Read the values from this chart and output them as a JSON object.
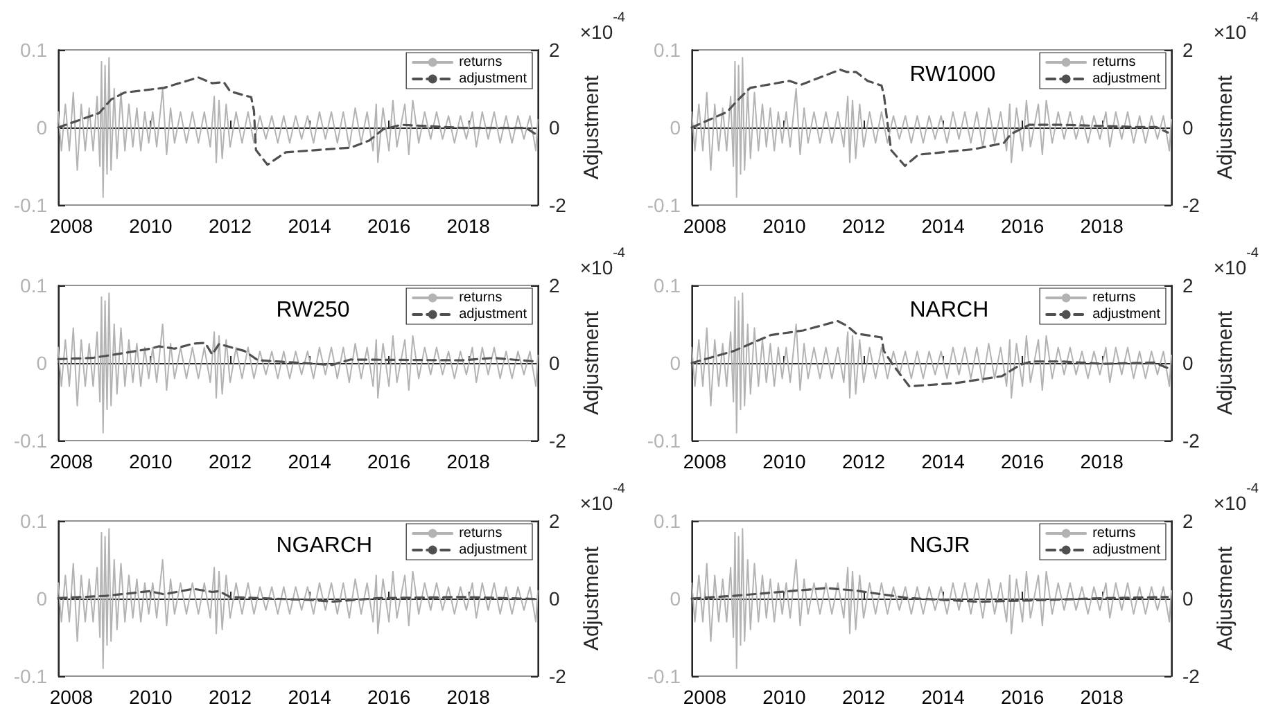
{
  "chart_data": [
    {
      "type": "line",
      "legend": "top right",
      "xlim": [
        2007.67,
        2019.75
      ],
      "xticks": [
        2008,
        2010,
        2012,
        2014,
        2016,
        2018
      ],
      "ylim": [
        -0.1,
        0.1
      ],
      "yticks": [
        -0.1,
        0,
        0.1
      ],
      "y2lim": [
        -2,
        2
      ],
      "y2ticks": [
        -2,
        0,
        2
      ],
      "y2label": "Adjustment",
      "annotations": [
        "×10$^{-4}$"
      ],
      "series": [
        {
          "name": "returns",
          "color": "#b3b3b3",
          "line_style": "solid",
          "x": [
            2007.67,
            2007.75,
            2007.85,
            2007.95,
            2008.05,
            2008.15,
            2008.25,
            2008.35,
            2008.45,
            2008.55,
            2008.65,
            2008.72,
            2008.76,
            2008.8,
            2008.85,
            2008.9,
            2008.95,
            2009.0,
            2009.08,
            2009.15,
            2009.25,
            2009.35,
            2009.45,
            2009.55,
            2009.65,
            2009.75,
            2009.85,
            2009.95,
            2010.05,
            2010.15,
            2010.3,
            2010.4,
            2010.5,
            2010.6,
            2010.75,
            2010.9,
            2011.05,
            2011.2,
            2011.35,
            2011.5,
            2011.6,
            2011.65,
            2011.72,
            2011.8,
            2011.9,
            2012.0,
            2012.15,
            2012.3,
            2012.45,
            2012.6,
            2012.75,
            2012.9,
            2013.05,
            2013.2,
            2013.35,
            2013.5,
            2013.65,
            2013.8,
            2013.95,
            2014.1,
            2014.25,
            2014.4,
            2014.55,
            2014.7,
            2014.85,
            2015.0,
            2015.15,
            2015.3,
            2015.45,
            2015.6,
            2015.68,
            2015.72,
            2015.85,
            2016.0,
            2016.1,
            2016.2,
            2016.4,
            2016.5,
            2016.6,
            2016.75,
            2016.9,
            2017.05,
            2017.2,
            2017.35,
            2017.5,
            2017.65,
            2017.8,
            2017.95,
            2018.1,
            2018.2,
            2018.35,
            2018.5,
            2018.65,
            2018.8,
            2018.95,
            2019.1,
            2019.25,
            2019.4,
            2019.55,
            2019.7,
            2019.75
          ],
          "values": [
            0.02,
            -0.03,
            0.03,
            -0.03,
            0.045,
            -0.055,
            0.03,
            -0.03,
            0.025,
            -0.03,
            0.04,
            -0.05,
            0.085,
            -0.09,
            0.08,
            -0.06,
            0.09,
            -0.055,
            0.05,
            -0.04,
            0.045,
            -0.03,
            0.03,
            -0.025,
            0.025,
            -0.03,
            0.02,
            -0.02,
            0.02,
            -0.025,
            0.05,
            -0.035,
            0.025,
            -0.02,
            0.02,
            -0.02,
            0.02,
            -0.02,
            0.02,
            -0.025,
            0.04,
            -0.045,
            0.035,
            -0.04,
            0.03,
            -0.025,
            0.02,
            -0.02,
            0.02,
            -0.02,
            0.015,
            -0.015,
            0.015,
            -0.02,
            0.015,
            -0.02,
            0.015,
            -0.015,
            0.015,
            -0.02,
            0.02,
            -0.015,
            0.02,
            -0.02,
            0.02,
            -0.025,
            0.025,
            -0.02,
            0.02,
            -0.03,
            0.03,
            -0.045,
            0.025,
            -0.03,
            0.035,
            -0.025,
            0.03,
            -0.035,
            0.035,
            -0.02,
            0.02,
            -0.015,
            0.02,
            -0.015,
            0.015,
            -0.02,
            0.015,
            -0.015,
            0.02,
            -0.025,
            0.02,
            -0.015,
            0.02,
            -0.02,
            0.015,
            -0.02,
            0.015,
            -0.015,
            0.015,
            -0.03,
            0.01
          ]
        },
        {
          "name": "adjustment",
          "color": "#505050",
          "line_style": "dashed",
          "axis": "y2",
          "x": [
            2007.67,
            2008.7,
            2009.0,
            2009.34,
            2010.33,
            2011.2,
            2011.55,
            2011.84,
            2012.0,
            2012.53,
            2012.6,
            2012.65,
            2012.94,
            2013.4,
            2015.03,
            2015.5,
            2015.85,
            2016.31,
            2017.83,
            2019.45,
            2019.69
          ],
          "values": [
            0,
            0.37,
            0.72,
            0.9,
            1.02,
            1.29,
            1.14,
            1.17,
            0.93,
            0.78,
            0.43,
            -0.58,
            -0.96,
            -0.64,
            -0.52,
            -0.34,
            -0.05,
            0.07,
            -0.01,
            -0.01,
            -0.17
          ]
        }
      ]
    },
    {
      "type": "line",
      "title": "RW1000",
      "legend": "top right",
      "xlim": [
        2007.67,
        2019.75
      ],
      "xticks": [
        2008,
        2010,
        2012,
        2014,
        2016,
        2018
      ],
      "ylim": [
        -0.1,
        0.1
      ],
      "yticks": [
        -0.1,
        0,
        0.1
      ],
      "y2lim": [
        -2,
        2
      ],
      "y2ticks": [
        -2,
        0,
        2
      ],
      "y2label": "Adjustment",
      "annotations": [
        "×10$^{-4}$"
      ],
      "series": [
        {
          "name": "returns",
          "color": "#b3b3b3",
          "line_style": "solid",
          "x": [
            2007.67,
            2007.75,
            2007.85,
            2007.95,
            2008.05,
            2008.15,
            2008.25,
            2008.35,
            2008.45,
            2008.55,
            2008.65,
            2008.72,
            2008.76,
            2008.8,
            2008.85,
            2008.9,
            2008.95,
            2009.0,
            2009.08,
            2009.15,
            2009.25,
            2009.35,
            2009.45,
            2009.55,
            2009.65,
            2009.75,
            2009.85,
            2009.95,
            2010.05,
            2010.15,
            2010.3,
            2010.4,
            2010.5,
            2010.6,
            2010.75,
            2010.9,
            2011.05,
            2011.2,
            2011.35,
            2011.5,
            2011.6,
            2011.65,
            2011.72,
            2011.8,
            2011.9,
            2012.0,
            2012.15,
            2012.3,
            2012.45,
            2012.6,
            2012.75,
            2012.9,
            2013.05,
            2013.2,
            2013.35,
            2013.5,
            2013.65,
            2013.8,
            2013.95,
            2014.1,
            2014.25,
            2014.4,
            2014.55,
            2014.7,
            2014.85,
            2015.0,
            2015.15,
            2015.3,
            2015.45,
            2015.6,
            2015.68,
            2015.72,
            2015.85,
            2016.0,
            2016.1,
            2016.2,
            2016.4,
            2016.5,
            2016.6,
            2016.75,
            2016.9,
            2017.05,
            2017.2,
            2017.35,
            2017.5,
            2017.65,
            2017.8,
            2017.95,
            2018.1,
            2018.2,
            2018.35,
            2018.5,
            2018.65,
            2018.8,
            2018.95,
            2019.1,
            2019.25,
            2019.4,
            2019.55,
            2019.7,
            2019.75
          ],
          "values": [
            0.02,
            -0.03,
            0.03,
            -0.03,
            0.045,
            -0.055,
            0.03,
            -0.03,
            0.025,
            -0.03,
            0.04,
            -0.05,
            0.085,
            -0.09,
            0.08,
            -0.06,
            0.09,
            -0.055,
            0.05,
            -0.04,
            0.045,
            -0.03,
            0.03,
            -0.025,
            0.025,
            -0.03,
            0.02,
            -0.02,
            0.02,
            -0.025,
            0.05,
            -0.035,
            0.025,
            -0.02,
            0.02,
            -0.02,
            0.02,
            -0.02,
            0.02,
            -0.025,
            0.04,
            -0.045,
            0.035,
            -0.04,
            0.03,
            -0.025,
            0.02,
            -0.02,
            0.02,
            -0.02,
            0.015,
            -0.015,
            0.015,
            -0.02,
            0.015,
            -0.02,
            0.015,
            -0.015,
            0.015,
            -0.02,
            0.02,
            -0.015,
            0.02,
            -0.02,
            0.02,
            -0.025,
            0.025,
            -0.02,
            0.02,
            -0.03,
            0.03,
            -0.045,
            0.025,
            -0.03,
            0.035,
            -0.025,
            0.03,
            -0.035,
            0.035,
            -0.02,
            0.02,
            -0.015,
            0.02,
            -0.015,
            0.015,
            -0.02,
            0.015,
            -0.015,
            0.02,
            -0.025,
            0.02,
            -0.015,
            0.02,
            -0.02,
            0.015,
            -0.02,
            0.015,
            -0.015,
            0.015,
            -0.03,
            0.01
          ]
        },
        {
          "name": "adjustment",
          "color": "#505050",
          "line_style": "dashed",
          "axis": "y2",
          "x": [
            2007.67,
            2008.56,
            2008.79,
            2009.14,
            2010.13,
            2010.42,
            2011.41,
            2011.58,
            2011.81,
            2012.1,
            2012.45,
            2012.51,
            2012.69,
            2013.04,
            2013.38,
            2014.78,
            2015.53,
            2015.71,
            2016.17,
            2016.99,
            2018.97,
            2019.37,
            2019.66
          ],
          "values": [
            0,
            0.4,
            0.66,
            1.02,
            1.2,
            1.1,
            1.49,
            1.43,
            1.43,
            1.2,
            1.08,
            0.84,
            -0.58,
            -0.99,
            -0.7,
            -0.56,
            -0.4,
            -0.17,
            0.07,
            0.07,
            0.01,
            0.01,
            -0.13
          ]
        }
      ]
    },
    {
      "type": "line",
      "title": "RW250",
      "legend": "top right",
      "xlim": [
        2007.67,
        2019.75
      ],
      "xticks": [
        2008,
        2010,
        2012,
        2014,
        2016,
        2018
      ],
      "ylim": [
        -0.1,
        0.1
      ],
      "yticks": [
        -0.1,
        0,
        0.1
      ],
      "y2lim": [
        -2,
        2
      ],
      "y2ticks": [
        -2,
        0,
        2
      ],
      "y2label": "Adjustment",
      "annotations": [
        "×10$^{-4}$"
      ],
      "series": [
        {
          "name": "returns",
          "color": "#b3b3b3",
          "line_style": "solid",
          "x": [
            2007.67,
            2007.75,
            2007.85,
            2007.95,
            2008.05,
            2008.15,
            2008.25,
            2008.35,
            2008.45,
            2008.55,
            2008.65,
            2008.72,
            2008.76,
            2008.8,
            2008.85,
            2008.9,
            2008.95,
            2009.0,
            2009.08,
            2009.15,
            2009.25,
            2009.35,
            2009.45,
            2009.55,
            2009.65,
            2009.75,
            2009.85,
            2009.95,
            2010.05,
            2010.15,
            2010.3,
            2010.4,
            2010.5,
            2010.6,
            2010.75,
            2010.9,
            2011.05,
            2011.2,
            2011.35,
            2011.5,
            2011.6,
            2011.65,
            2011.72,
            2011.8,
            2011.9,
            2012.0,
            2012.15,
            2012.3,
            2012.45,
            2012.6,
            2012.75,
            2012.9,
            2013.05,
            2013.2,
            2013.35,
            2013.5,
            2013.65,
            2013.8,
            2013.95,
            2014.1,
            2014.25,
            2014.4,
            2014.55,
            2014.7,
            2014.85,
            2015.0,
            2015.15,
            2015.3,
            2015.45,
            2015.6,
            2015.68,
            2015.72,
            2015.85,
            2016.0,
            2016.1,
            2016.2,
            2016.4,
            2016.5,
            2016.6,
            2016.75,
            2016.9,
            2017.05,
            2017.2,
            2017.35,
            2017.5,
            2017.65,
            2017.8,
            2017.95,
            2018.1,
            2018.2,
            2018.35,
            2018.5,
            2018.65,
            2018.8,
            2018.95,
            2019.1,
            2019.25,
            2019.4,
            2019.55,
            2019.7,
            2019.75
          ],
          "values": [
            0.02,
            -0.03,
            0.03,
            -0.03,
            0.045,
            -0.055,
            0.03,
            -0.03,
            0.025,
            -0.03,
            0.04,
            -0.05,
            0.085,
            -0.09,
            0.08,
            -0.06,
            0.09,
            -0.055,
            0.05,
            -0.04,
            0.045,
            -0.03,
            0.03,
            -0.025,
            0.025,
            -0.03,
            0.02,
            -0.02,
            0.02,
            -0.025,
            0.05,
            -0.035,
            0.025,
            -0.02,
            0.02,
            -0.02,
            0.02,
            -0.02,
            0.02,
            -0.025,
            0.04,
            -0.045,
            0.035,
            -0.04,
            0.03,
            -0.025,
            0.02,
            -0.02,
            0.02,
            -0.02,
            0.015,
            -0.015,
            0.015,
            -0.02,
            0.015,
            -0.02,
            0.015,
            -0.015,
            0.015,
            -0.02,
            0.02,
            -0.015,
            0.02,
            -0.02,
            0.02,
            -0.025,
            0.025,
            -0.02,
            0.02,
            -0.03,
            0.03,
            -0.045,
            0.025,
            -0.03,
            0.035,
            -0.025,
            0.03,
            -0.035,
            0.035,
            -0.02,
            0.02,
            -0.015,
            0.02,
            -0.015,
            0.015,
            -0.02,
            0.015,
            -0.015,
            0.02,
            -0.025,
            0.02,
            -0.015,
            0.02,
            -0.02,
            0.015,
            -0.02,
            0.015,
            -0.015,
            0.015,
            -0.03,
            0.01
          ]
        },
        {
          "name": "adjustment",
          "color": "#505050",
          "line_style": "dashed",
          "axis": "y2",
          "x": [
            2007.67,
            2008.52,
            2009.1,
            2010.0,
            2010.2,
            2010.6,
            2011.08,
            2011.37,
            2011.55,
            2011.72,
            2012.36,
            2012.7,
            2013.64,
            2014.57,
            2015.03,
            2017.83,
            2018.64,
            2019.69
          ],
          "values": [
            0.1,
            0.13,
            0.22,
            0.37,
            0.43,
            0.37,
            0.5,
            0.52,
            0.22,
            0.49,
            0.31,
            0.07,
            0.01,
            -0.05,
            0.09,
            0.07,
            0.13,
            0.04
          ]
        }
      ]
    },
    {
      "type": "line",
      "title": "NARCH",
      "legend": "top right",
      "xlim": [
        2007.67,
        2019.75
      ],
      "xticks": [
        2008,
        2010,
        2012,
        2014,
        2016,
        2018
      ],
      "ylim": [
        -0.1,
        0.1
      ],
      "yticks": [
        -0.1,
        0,
        0.1
      ],
      "y2lim": [
        -2,
        2
      ],
      "y2ticks": [
        -2,
        0,
        2
      ],
      "y2label": "Adjustment",
      "annotations": [
        "×10$^{-4}$"
      ],
      "series": [
        {
          "name": "returns",
          "color": "#b3b3b3",
          "line_style": "solid",
          "x": [
            2007.67,
            2007.75,
            2007.85,
            2007.95,
            2008.05,
            2008.15,
            2008.25,
            2008.35,
            2008.45,
            2008.55,
            2008.65,
            2008.72,
            2008.76,
            2008.8,
            2008.85,
            2008.9,
            2008.95,
            2009.0,
            2009.08,
            2009.15,
            2009.25,
            2009.35,
            2009.45,
            2009.55,
            2009.65,
            2009.75,
            2009.85,
            2009.95,
            2010.05,
            2010.15,
            2010.3,
            2010.4,
            2010.5,
            2010.6,
            2010.75,
            2010.9,
            2011.05,
            2011.2,
            2011.35,
            2011.5,
            2011.6,
            2011.65,
            2011.72,
            2011.8,
            2011.9,
            2012.0,
            2012.15,
            2012.3,
            2012.45,
            2012.6,
            2012.75,
            2012.9,
            2013.05,
            2013.2,
            2013.35,
            2013.5,
            2013.65,
            2013.8,
            2013.95,
            2014.1,
            2014.25,
            2014.4,
            2014.55,
            2014.7,
            2014.85,
            2015.0,
            2015.15,
            2015.3,
            2015.45,
            2015.6,
            2015.68,
            2015.72,
            2015.85,
            2016.0,
            2016.1,
            2016.2,
            2016.4,
            2016.5,
            2016.6,
            2016.75,
            2016.9,
            2017.05,
            2017.2,
            2017.35,
            2017.5,
            2017.65,
            2017.8,
            2017.95,
            2018.1,
            2018.2,
            2018.35,
            2018.5,
            2018.65,
            2018.8,
            2018.95,
            2019.1,
            2019.25,
            2019.4,
            2019.55,
            2019.7,
            2019.75
          ],
          "values": [
            0.02,
            -0.03,
            0.03,
            -0.03,
            0.045,
            -0.055,
            0.03,
            -0.03,
            0.025,
            -0.03,
            0.04,
            -0.05,
            0.085,
            -0.09,
            0.08,
            -0.06,
            0.09,
            -0.055,
            0.05,
            -0.04,
            0.045,
            -0.03,
            0.03,
            -0.025,
            0.025,
            -0.03,
            0.02,
            -0.02,
            0.02,
            -0.025,
            0.05,
            -0.035,
            0.025,
            -0.02,
            0.02,
            -0.02,
            0.02,
            -0.02,
            0.02,
            -0.025,
            0.04,
            -0.045,
            0.035,
            -0.04,
            0.03,
            -0.025,
            0.02,
            -0.02,
            0.02,
            -0.02,
            0.015,
            -0.015,
            0.015,
            -0.02,
            0.015,
            -0.02,
            0.015,
            -0.015,
            0.015,
            -0.02,
            0.02,
            -0.015,
            0.02,
            -0.02,
            0.02,
            -0.025,
            0.025,
            -0.02,
            0.02,
            -0.03,
            0.03,
            -0.045,
            0.025,
            -0.03,
            0.035,
            -0.025,
            0.03,
            -0.035,
            0.035,
            -0.02,
            0.02,
            -0.015,
            0.02,
            -0.015,
            0.015,
            -0.02,
            0.015,
            -0.015,
            0.02,
            -0.025,
            0.02,
            -0.015,
            0.02,
            -0.02,
            0.015,
            -0.02,
            0.015,
            -0.015,
            0.015,
            -0.03,
            0.01
          ]
        },
        {
          "name": "adjustment",
          "color": "#505050",
          "line_style": "dashed",
          "axis": "y2",
          "x": [
            2007.67,
            2008.73,
            2009.66,
            2010.48,
            2011.35,
            2011.58,
            2011.81,
            2012.45,
            2012.51,
            2012.74,
            2013.15,
            2014.31,
            2015.48,
            2015.94,
            2016.23,
            2016.99,
            2018.03,
            2019.31,
            2019.66
          ],
          "values": [
            0,
            0.31,
            0.72,
            0.84,
            1.08,
            0.96,
            0.76,
            0.66,
            0.31,
            -0.05,
            -0.6,
            -0.52,
            -0.34,
            -0.05,
            0.04,
            0.04,
            -0.02,
            0.01,
            -0.13
          ]
        }
      ]
    },
    {
      "type": "line",
      "title": "NGARCH",
      "legend": "top right",
      "xlim": [
        2007.67,
        2019.75
      ],
      "xticks": [
        2008,
        2010,
        2012,
        2014,
        2016,
        2018
      ],
      "ylim": [
        -0.1,
        0.1
      ],
      "yticks": [
        -0.1,
        0,
        0.1
      ],
      "y2lim": [
        -2,
        2
      ],
      "y2ticks": [
        -2,
        0,
        2
      ],
      "y2label": "Adjustment",
      "annotations": [
        "×10$^{-4}$"
      ],
      "series": [
        {
          "name": "returns",
          "color": "#b3b3b3",
          "line_style": "solid",
          "x": [
            2007.67,
            2007.75,
            2007.85,
            2007.95,
            2008.05,
            2008.15,
            2008.25,
            2008.35,
            2008.45,
            2008.55,
            2008.65,
            2008.72,
            2008.76,
            2008.8,
            2008.85,
            2008.9,
            2008.95,
            2009.0,
            2009.08,
            2009.15,
            2009.25,
            2009.35,
            2009.45,
            2009.55,
            2009.65,
            2009.75,
            2009.85,
            2009.95,
            2010.05,
            2010.15,
            2010.3,
            2010.4,
            2010.5,
            2010.6,
            2010.75,
            2010.9,
            2011.05,
            2011.2,
            2011.35,
            2011.5,
            2011.6,
            2011.65,
            2011.72,
            2011.8,
            2011.9,
            2012.0,
            2012.15,
            2012.3,
            2012.45,
            2012.6,
            2012.75,
            2012.9,
            2013.05,
            2013.2,
            2013.35,
            2013.5,
            2013.65,
            2013.8,
            2013.95,
            2014.1,
            2014.25,
            2014.4,
            2014.55,
            2014.7,
            2014.85,
            2015.0,
            2015.15,
            2015.3,
            2015.45,
            2015.6,
            2015.68,
            2015.72,
            2015.85,
            2016.0,
            2016.1,
            2016.2,
            2016.4,
            2016.5,
            2016.6,
            2016.75,
            2016.9,
            2017.05,
            2017.2,
            2017.35,
            2017.5,
            2017.65,
            2017.8,
            2017.95,
            2018.1,
            2018.2,
            2018.35,
            2018.5,
            2018.65,
            2018.8,
            2018.95,
            2019.1,
            2019.25,
            2019.4,
            2019.55,
            2019.7,
            2019.75
          ],
          "values": [
            0.02,
            -0.03,
            0.03,
            -0.03,
            0.045,
            -0.055,
            0.03,
            -0.03,
            0.025,
            -0.03,
            0.04,
            -0.05,
            0.085,
            -0.09,
            0.08,
            -0.06,
            0.09,
            -0.055,
            0.05,
            -0.04,
            0.045,
            -0.03,
            0.03,
            -0.025,
            0.025,
            -0.03,
            0.02,
            -0.02,
            0.02,
            -0.025,
            0.05,
            -0.035,
            0.025,
            -0.02,
            0.02,
            -0.02,
            0.02,
            -0.02,
            0.02,
            -0.025,
            0.04,
            -0.045,
            0.035,
            -0.04,
            0.03,
            -0.025,
            0.02,
            -0.02,
            0.02,
            -0.02,
            0.015,
            -0.015,
            0.015,
            -0.02,
            0.015,
            -0.02,
            0.015,
            -0.015,
            0.015,
            -0.02,
            0.02,
            -0.015,
            0.02,
            -0.02,
            0.02,
            -0.025,
            0.025,
            -0.02,
            0.02,
            -0.03,
            0.03,
            -0.045,
            0.025,
            -0.03,
            0.035,
            -0.025,
            0.03,
            -0.035,
            0.035,
            -0.02,
            0.02,
            -0.015,
            0.02,
            -0.015,
            0.015,
            -0.02,
            0.015,
            -0.015,
            0.02,
            -0.025,
            0.02,
            -0.015,
            0.02,
            -0.02,
            0.015,
            -0.02,
            0.015,
            -0.015,
            0.015,
            -0.03,
            0.01
          ]
        },
        {
          "name": "adjustment",
          "color": "#505050",
          "line_style": "dashed",
          "axis": "y2",
          "x": [
            2007.67,
            2008.87,
            2009.98,
            2010.33,
            2011.08,
            2011.55,
            2011.72,
            2012.0,
            2014.1,
            2014.57,
            2015.73,
            2017.83,
            2019.69
          ],
          "values": [
            0.01,
            0.07,
            0.19,
            0.11,
            0.25,
            0.17,
            0.19,
            0.04,
            -0.04,
            -0.08,
            0.01,
            0.04,
            -0.01
          ]
        }
      ]
    },
    {
      "type": "line",
      "title": "NGJR",
      "legend": "top right",
      "xlim": [
        2007.67,
        2019.75
      ],
      "xticks": [
        2008,
        2010,
        2012,
        2014,
        2016,
        2018
      ],
      "ylim": [
        -0.1,
        0.1
      ],
      "yticks": [
        -0.1,
        0,
        0.1
      ],
      "y2lim": [
        -2,
        2
      ],
      "y2ticks": [
        -2,
        0,
        2
      ],
      "y2label": "Adjustment",
      "annotations": [
        "×10$^{-4}$"
      ],
      "series": [
        {
          "name": "returns",
          "color": "#b3b3b3",
          "line_style": "solid",
          "x": [
            2007.67,
            2007.75,
            2007.85,
            2007.95,
            2008.05,
            2008.15,
            2008.25,
            2008.35,
            2008.45,
            2008.55,
            2008.65,
            2008.72,
            2008.76,
            2008.8,
            2008.85,
            2008.9,
            2008.95,
            2009.0,
            2009.08,
            2009.15,
            2009.25,
            2009.35,
            2009.45,
            2009.55,
            2009.65,
            2009.75,
            2009.85,
            2009.95,
            2010.05,
            2010.15,
            2010.3,
            2010.4,
            2010.5,
            2010.6,
            2010.75,
            2010.9,
            2011.05,
            2011.2,
            2011.35,
            2011.5,
            2011.6,
            2011.65,
            2011.72,
            2011.8,
            2011.9,
            2012.0,
            2012.15,
            2012.3,
            2012.45,
            2012.6,
            2012.75,
            2012.9,
            2013.05,
            2013.2,
            2013.35,
            2013.5,
            2013.65,
            2013.8,
            2013.95,
            2014.1,
            2014.25,
            2014.4,
            2014.55,
            2014.7,
            2014.85,
            2015.0,
            2015.15,
            2015.3,
            2015.45,
            2015.6,
            2015.68,
            2015.72,
            2015.85,
            2016.0,
            2016.1,
            2016.2,
            2016.4,
            2016.5,
            2016.6,
            2016.75,
            2016.9,
            2017.05,
            2017.2,
            2017.35,
            2017.5,
            2017.65,
            2017.8,
            2017.95,
            2018.1,
            2018.2,
            2018.35,
            2018.5,
            2018.65,
            2018.8,
            2018.95,
            2019.1,
            2019.25,
            2019.4,
            2019.55,
            2019.7,
            2019.75
          ],
          "values": [
            0.02,
            -0.03,
            0.03,
            -0.03,
            0.045,
            -0.055,
            0.03,
            -0.03,
            0.025,
            -0.03,
            0.04,
            -0.05,
            0.085,
            -0.09,
            0.08,
            -0.06,
            0.09,
            -0.055,
            0.05,
            -0.04,
            0.045,
            -0.03,
            0.03,
            -0.025,
            0.025,
            -0.03,
            0.02,
            -0.02,
            0.02,
            -0.025,
            0.05,
            -0.035,
            0.025,
            -0.02,
            0.02,
            -0.02,
            0.02,
            -0.02,
            0.02,
            -0.025,
            0.04,
            -0.045,
            0.035,
            -0.04,
            0.03,
            -0.025,
            0.02,
            -0.02,
            0.02,
            -0.02,
            0.015,
            -0.015,
            0.015,
            -0.02,
            0.015,
            -0.02,
            0.015,
            -0.015,
            0.015,
            -0.02,
            0.02,
            -0.015,
            0.02,
            -0.02,
            0.02,
            -0.025,
            0.025,
            -0.02,
            0.02,
            -0.03,
            0.03,
            -0.045,
            0.025,
            -0.03,
            0.035,
            -0.025,
            0.03,
            -0.035,
            0.035,
            -0.02,
            0.02,
            -0.015,
            0.02,
            -0.015,
            0.015,
            -0.02,
            0.015,
            -0.015,
            0.02,
            -0.025,
            0.02,
            -0.015,
            0.02,
            -0.02,
            0.015,
            -0.02,
            0.015,
            -0.015,
            0.015,
            -0.03,
            0.01
          ]
        },
        {
          "name": "adjustment",
          "color": "#505050",
          "line_style": "dashed",
          "axis": "y2",
          "x": [
            2007.67,
            2008.73,
            2010.13,
            2011.06,
            2011.76,
            2013.15,
            2014.9,
            2016.17,
            2018.03,
            2019.66
          ],
          "values": [
            0,
            0.07,
            0.19,
            0.27,
            0.21,
            0.01,
            -0.08,
            -0.05,
            0.01,
            0.04
          ]
        }
      ]
    }
  ]
}
